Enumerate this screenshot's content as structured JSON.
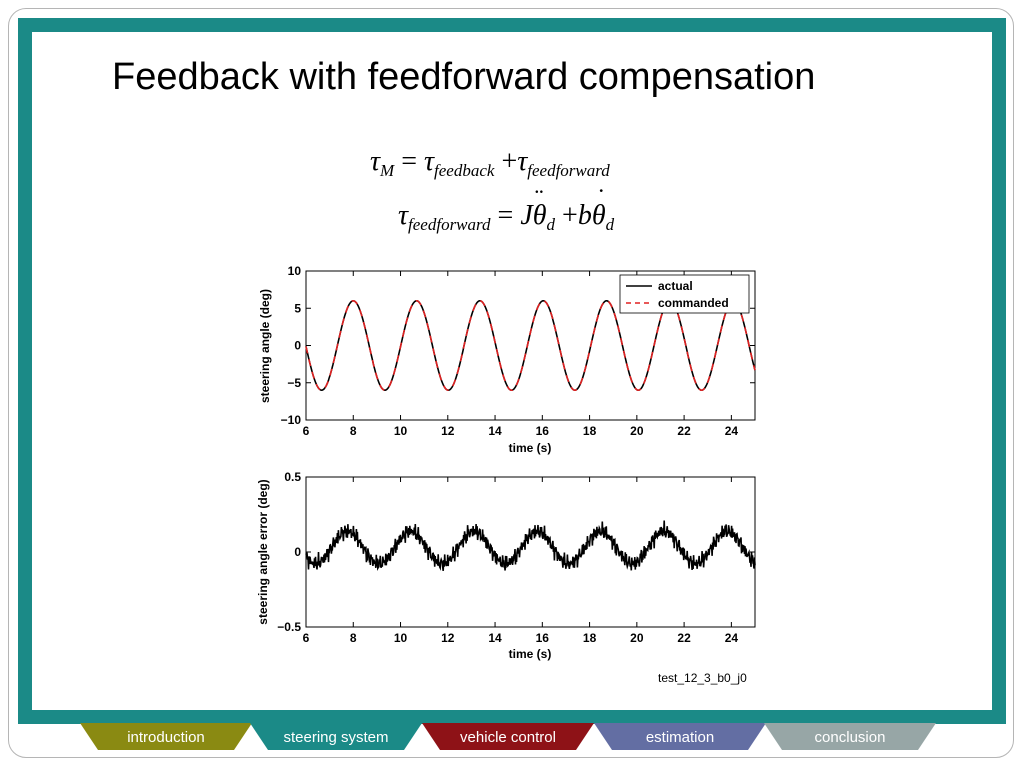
{
  "slide": {
    "title": "Feedback with feedforward compensation",
    "caption": "test_12_3_b0_j0"
  },
  "equations": {
    "eq1": {
      "tau": "τ",
      "sub_m": "M",
      "equals": "=",
      "sub_fb": "feedback",
      "plus": "+",
      "sub_ff": "feedforward"
    },
    "eq2": {
      "tau": "τ",
      "sub_ff": "feedforward",
      "equals": "=",
      "J": "J",
      "theta": "θ",
      "d": "d",
      "plus": "+",
      "b": "b"
    }
  },
  "tabs": [
    {
      "label": "introduction",
      "color": "#8a8a12"
    },
    {
      "label": "steering system",
      "color": "#1b8a87"
    },
    {
      "label": "vehicle control",
      "color": "#8e1217"
    },
    {
      "label": "estimation",
      "color": "#636ea3"
    },
    {
      "label": "conclusion",
      "color": "#97a6a6"
    }
  ],
  "chart_data": [
    {
      "type": "line",
      "xlabel": "time (s)",
      "ylabel": "steering angle (deg)",
      "xlim": [
        6,
        25
      ],
      "ylim": [
        -10,
        10
      ],
      "xticks": [
        "6",
        "8",
        "10",
        "12",
        "14",
        "16",
        "18",
        "20",
        "22",
        "24"
      ],
      "yticks": [
        "10",
        "5",
        "0",
        "−5",
        "−10"
      ],
      "legend_position": "top-right",
      "series": [
        {
          "name": "actual",
          "color": "#000000",
          "style": "solid",
          "amplitude": 6,
          "period": 2.68,
          "peak_at": 8.0
        },
        {
          "name": "commanded",
          "color": "#e02020",
          "style": "dashed",
          "amplitude": 6,
          "period": 2.68,
          "peak_at": 8.0
        }
      ]
    },
    {
      "type": "line",
      "xlabel": "time (s)",
      "ylabel": "steering angle error (deg)",
      "xlim": [
        6,
        25
      ],
      "ylim": [
        -0.5,
        0.5
      ],
      "xticks": [
        "6",
        "8",
        "10",
        "12",
        "14",
        "16",
        "18",
        "20",
        "22",
        "24"
      ],
      "yticks": [
        "0.5",
        "0",
        "−0.5"
      ],
      "series": [
        {
          "color": "#000000",
          "style": "solid",
          "amplitude": 0.12,
          "offset": 0.03,
          "period": 2.68,
          "peak_at": 8.0
        }
      ]
    }
  ]
}
